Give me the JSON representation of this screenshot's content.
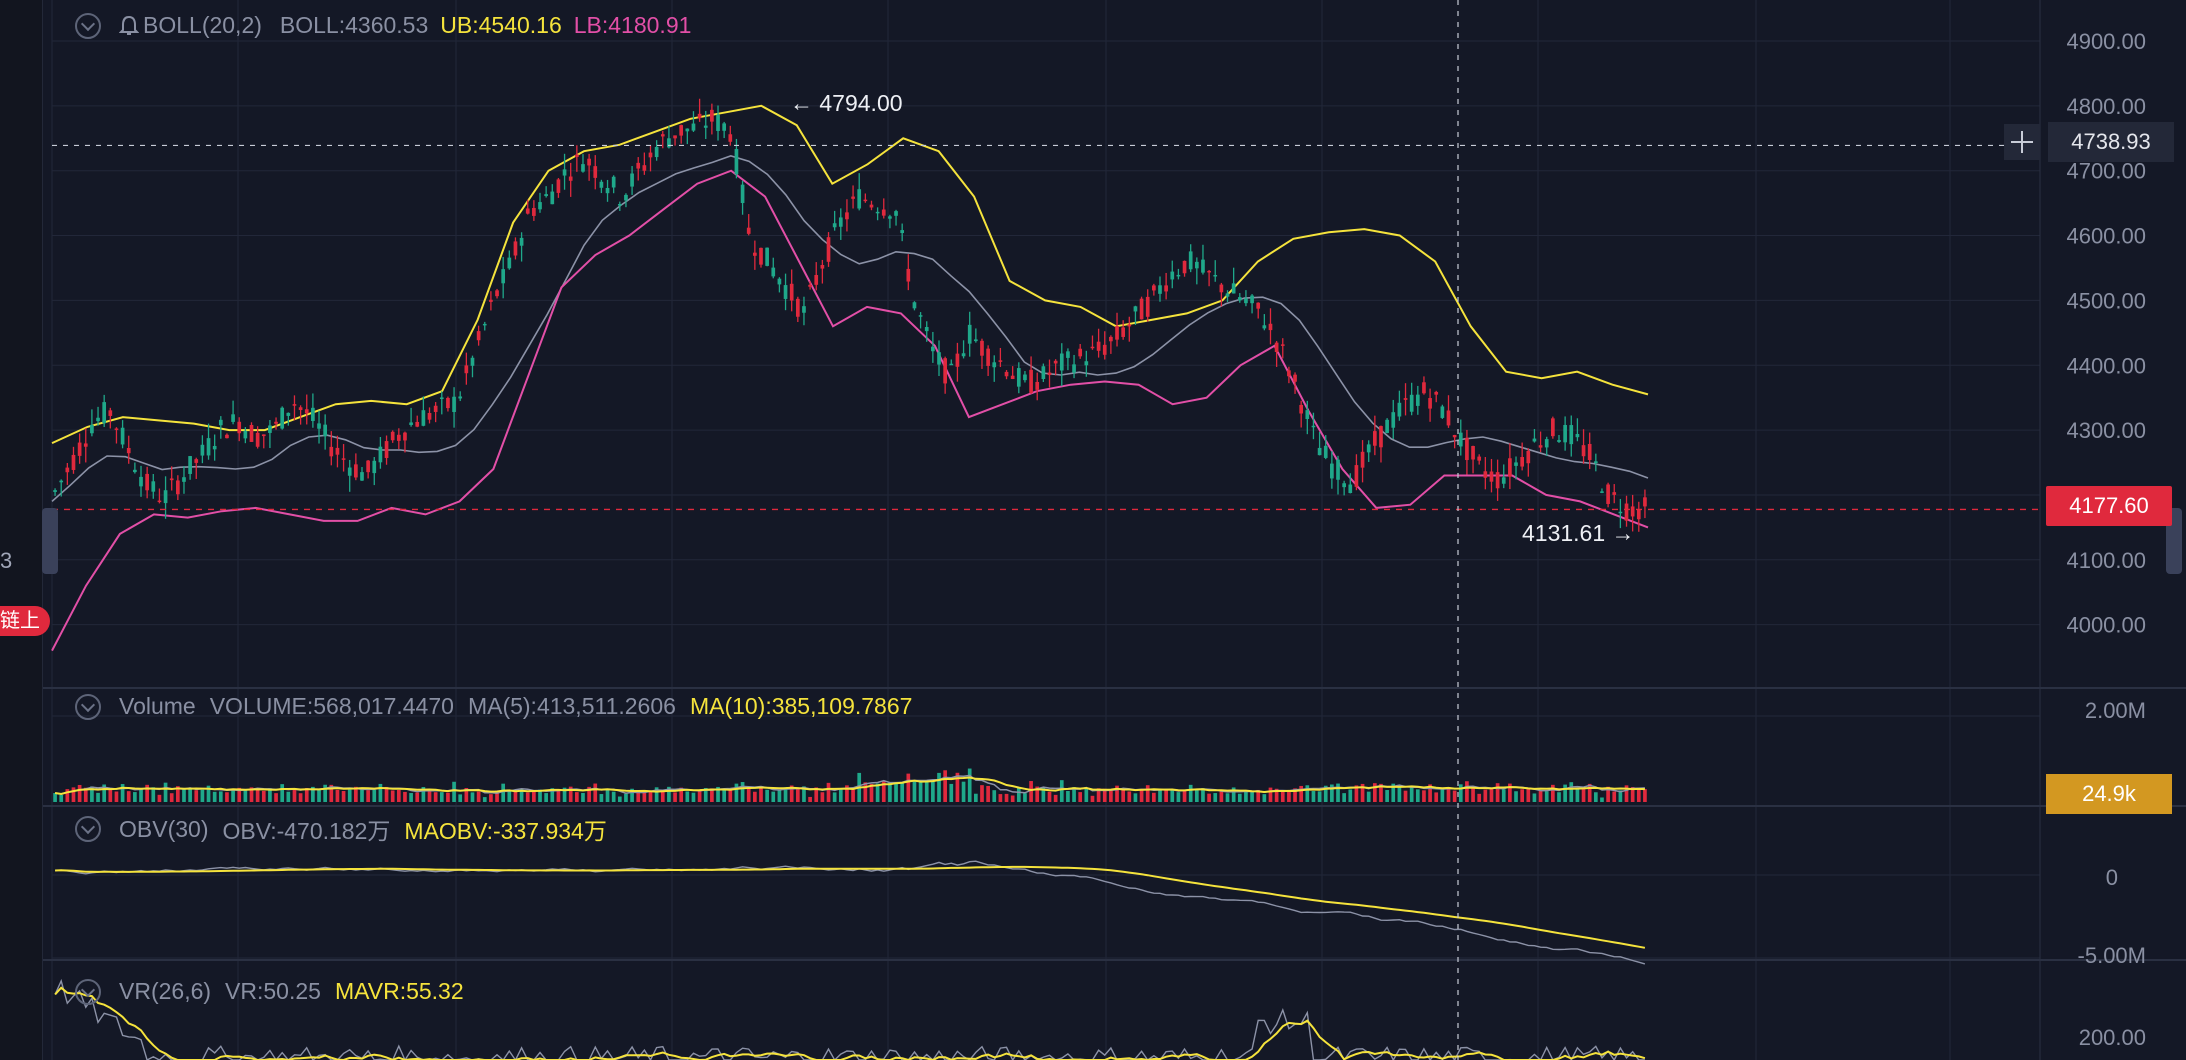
{
  "colors": {
    "background": "#141826",
    "grid": "#222739",
    "up": "#1fa88a",
    "down": "#e0293d",
    "ub": "#f5e33c",
    "lb": "#e24fa7",
    "mid": "#8c92a7",
    "axis_text": "#8a90a3"
  },
  "icons": {
    "collapse": "chevron-down-icon",
    "alert": "bell-icon",
    "crosshair": "plus-icon"
  },
  "indicators": {
    "boll": {
      "name": "BOLL(20,2)",
      "value": "BOLL:4360.53",
      "ub": "UB:4540.16",
      "lb": "LB:4180.91"
    },
    "volume": {
      "name": "Volume",
      "value": "VOLUME:568,017.4470",
      "ma5": "MA(5):413,511.2606",
      "ma10": "MA(10):385,109.7867"
    },
    "obv": {
      "name": "OBV(30)",
      "value": "OBV:-470.182万",
      "maobv": "MAOBV:-337.934万"
    },
    "vr": {
      "name": "VR(26,6)",
      "value": "VR:50.25",
      "mavr": "MAVR:55.32"
    }
  },
  "labels": {
    "last_price": "4177.60",
    "crosshair_price": "4738.93",
    "volume_cursor": "24.9k",
    "high_marker": "4794.00",
    "low_marker": "4131.61",
    "left_badge": "链上",
    "left_digit": "3"
  },
  "axes": {
    "price_ticks": [
      "4900.00",
      "4800.00",
      "4700.00",
      "4600.00",
      "4500.00",
      "4400.00",
      "4300.00",
      "4100.00",
      "4000.00"
    ],
    "volume_ticks": [
      "2.00M"
    ],
    "obv_ticks": [
      "0",
      "-5.00M"
    ],
    "vr_ticks": [
      "200.00"
    ]
  },
  "chart_data": {
    "type": "candlestick",
    "price_ylim": [
      3900,
      4950
    ],
    "high": 4794.0,
    "low": 4131.61,
    "last": 4177.6,
    "crosshair": 4738.93,
    "boll": {
      "mid": 4360.53,
      "ub": 4540.16,
      "lb": 4180.91
    },
    "close_path": [
      4205,
      4255,
      4310,
      4330,
      4270,
      4215,
      4195,
      4230,
      4260,
      4300,
      4315,
      4290,
      4300,
      4345,
      4320,
      4280,
      4250,
      4230,
      4265,
      4300,
      4320,
      4330,
      4345,
      4420,
      4500,
      4560,
      4640,
      4660,
      4700,
      4720,
      4690,
      4660,
      4700,
      4740,
      4760,
      4765,
      4780,
      4760,
      4600,
      4560,
      4520,
      4480,
      4560,
      4620,
      4660,
      4650,
      4640,
      4500,
      4420,
      4380,
      4450,
      4420,
      4400,
      4370,
      4380,
      4400,
      4410,
      4420,
      4440,
      4470,
      4500,
      4540,
      4560,
      4540,
      4520,
      4500,
      4480,
      4430,
      4360,
      4280,
      4240,
      4220,
      4270,
      4310,
      4340,
      4360,
      4330,
      4280,
      4240,
      4225,
      4250,
      4280,
      4300,
      4290,
      4260,
      4200,
      4180,
      4177.6
    ],
    "ub_path": [
      4280,
      4305,
      4320,
      4315,
      4310,
      4300,
      4300,
      4320,
      4340,
      4345,
      4340,
      4360,
      4470,
      4620,
      4700,
      4730,
      4740,
      4760,
      4780,
      4790,
      4800,
      4770,
      4680,
      4710,
      4750,
      4730,
      4660,
      4530,
      4500,
      4490,
      4460,
      4470,
      4480,
      4500,
      4560,
      4595,
      4605,
      4610,
      4600,
      4560,
      4460,
      4390,
      4380,
      4390,
      4370,
      4355
    ],
    "lb_path": [
      3960,
      4060,
      4140,
      4170,
      4165,
      4175,
      4180,
      4170,
      4160,
      4160,
      4180,
      4170,
      4190,
      4240,
      4380,
      4520,
      4570,
      4600,
      4640,
      4680,
      4700,
      4660,
      4560,
      4460,
      4490,
      4480,
      4430,
      4320,
      4340,
      4360,
      4370,
      4375,
      4370,
      4340,
      4350,
      4400,
      4430,
      4330,
      4240,
      4180,
      4185,
      4230,
      4230,
      4230,
      4200,
      4190,
      4170,
      4150
    ],
    "volume_ylim": [
      0,
      2000000
    ],
    "volume_ma10": 385109.7867,
    "obv_ylim": [
      -6000000,
      2000000
    ],
    "vr_ylim": [
      0,
      300
    ]
  }
}
